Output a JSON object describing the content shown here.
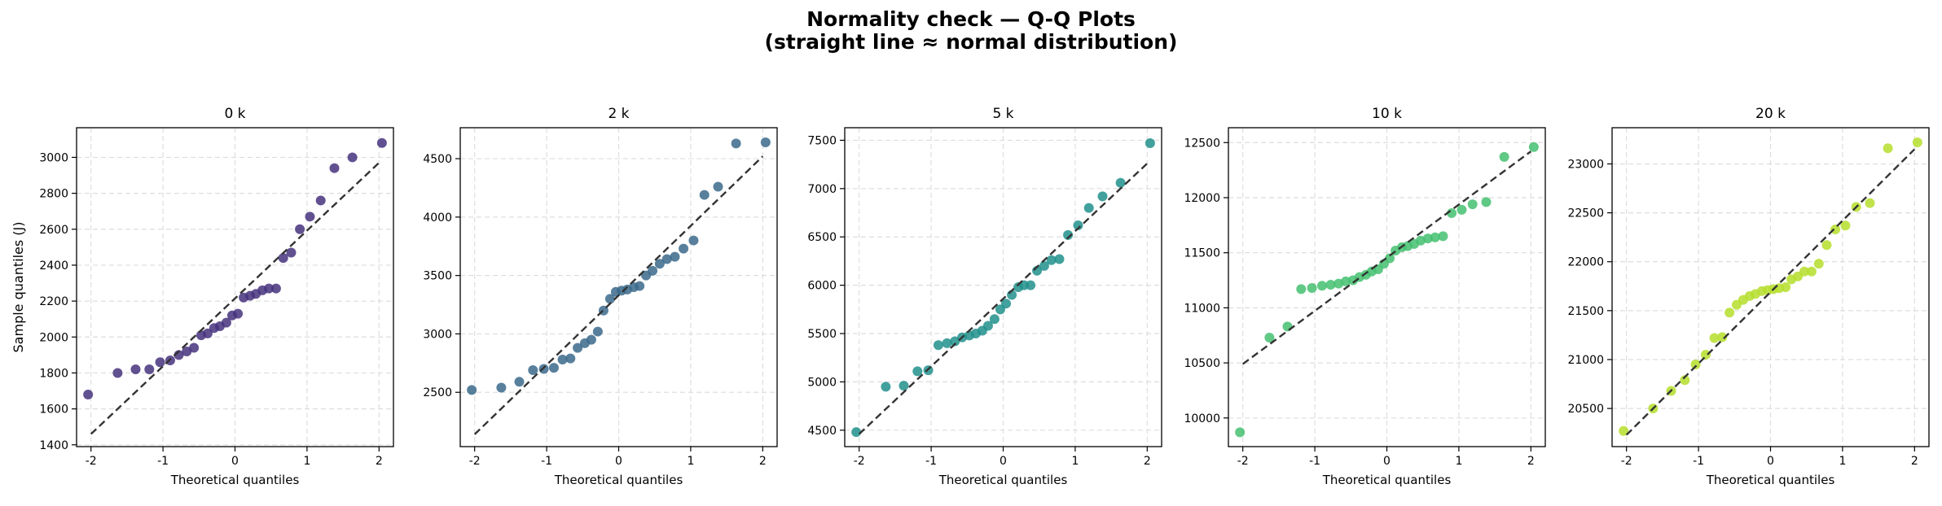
{
  "title": "Normality check — Q-Q Plots\n(straight line ≈ normal distribution)",
  "chart_data": [
    {
      "type": "scatter",
      "title": "0 k",
      "xlabel": "Theoretical quantiles",
      "ylabel": "Sample quantiles (J)",
      "color": "#46327e",
      "x": [
        -2.04,
        -1.63,
        -1.38,
        -1.19,
        -1.04,
        -0.9,
        -0.78,
        -0.67,
        -0.57,
        -0.47,
        -0.38,
        -0.29,
        -0.21,
        -0.12,
        -0.04,
        0.04,
        0.12,
        0.21,
        0.29,
        0.38,
        0.47,
        0.57,
        0.67,
        0.78,
        0.9,
        1.04,
        1.19,
        1.38,
        1.63,
        2.04
      ],
      "values": [
        1680,
        1800,
        1820,
        1820,
        1860,
        1870,
        1900,
        1920,
        1940,
        2010,
        2020,
        2050,
        2060,
        2080,
        2120,
        2130,
        2220,
        2230,
        2240,
        2260,
        2270,
        2270,
        2440,
        2470,
        2600,
        2670,
        2760,
        2940,
        3000,
        3080
      ],
      "fit_line": {
        "x": [
          -2,
          2
        ],
        "y": [
          1460,
          2970
        ]
      },
      "xlim": [
        -2.2,
        2.2
      ],
      "ylim": [
        1390,
        3165
      ],
      "xticks": [
        -2,
        -1,
        0,
        1,
        2
      ],
      "yticks": [
        1400,
        1600,
        1800,
        2000,
        2200,
        2400,
        2600,
        2800,
        3000
      ],
      "grid": true
    },
    {
      "type": "scatter",
      "title": "2 k",
      "xlabel": "Theoretical quantiles",
      "color": "#3b6a8c",
      "x": [
        -2.04,
        -1.63,
        -1.38,
        -1.19,
        -1.04,
        -0.9,
        -0.78,
        -0.67,
        -0.57,
        -0.47,
        -0.38,
        -0.29,
        -0.21,
        -0.12,
        -0.04,
        0.04,
        0.12,
        0.21,
        0.29,
        0.38,
        0.47,
        0.57,
        0.67,
        0.78,
        0.9,
        1.04,
        1.19,
        1.38,
        1.63,
        2.04
      ],
      "values": [
        2520,
        2540,
        2590,
        2690,
        2700,
        2710,
        2780,
        2790,
        2880,
        2920,
        2950,
        3020,
        3200,
        3300,
        3360,
        3370,
        3380,
        3400,
        3410,
        3500,
        3540,
        3600,
        3640,
        3660,
        3730,
        3800,
        4190,
        4260,
        4630,
        4640
      ],
      "fit_line": {
        "x": [
          -2,
          2
        ],
        "y": [
          2140,
          4520
        ]
      },
      "xlim": [
        -2.2,
        2.2
      ],
      "ylim": [
        2035,
        4765
      ],
      "xticks": [
        -2,
        -1,
        0,
        1,
        2
      ],
      "yticks": [
        2500,
        3000,
        3500,
        4000,
        4500
      ],
      "grid": true
    },
    {
      "type": "scatter",
      "title": "5 k",
      "xlabel": "Theoretical quantiles",
      "color": "#21918c",
      "x": [
        -2.04,
        -1.63,
        -1.38,
        -1.19,
        -1.04,
        -0.9,
        -0.78,
        -0.67,
        -0.57,
        -0.47,
        -0.38,
        -0.29,
        -0.21,
        -0.12,
        -0.04,
        0.04,
        0.12,
        0.21,
        0.29,
        0.38,
        0.47,
        0.57,
        0.67,
        0.78,
        0.9,
        1.04,
        1.19,
        1.38,
        1.63,
        2.04
      ],
      "values": [
        4480,
        4950,
        4960,
        5110,
        5120,
        5380,
        5400,
        5420,
        5460,
        5480,
        5500,
        5530,
        5580,
        5650,
        5750,
        5810,
        5900,
        5980,
        6000,
        6000,
        6150,
        6200,
        6260,
        6270,
        6520,
        6620,
        6800,
        6920,
        7060,
        7470
      ],
      "fit_line": {
        "x": [
          -2,
          2
        ],
        "y": [
          4460,
          7260
        ]
      },
      "xlim": [
        -2.2,
        2.2
      ],
      "ylim": [
        4330,
        7630
      ],
      "xticks": [
        -2,
        -1,
        0,
        1,
        2
      ],
      "yticks": [
        4500,
        5000,
        5500,
        6000,
        6500,
        7000,
        7500
      ],
      "grid": true
    },
    {
      "type": "scatter",
      "title": "10 k",
      "xlabel": "Theoretical quantiles",
      "color": "#44bf70",
      "x": [
        -2.04,
        -1.63,
        -1.38,
        -1.19,
        -1.04,
        -0.9,
        -0.78,
        -0.67,
        -0.57,
        -0.47,
        -0.38,
        -0.29,
        -0.21,
        -0.12,
        -0.04,
        0.04,
        0.12,
        0.21,
        0.29,
        0.38,
        0.47,
        0.57,
        0.67,
        0.78,
        0.9,
        1.04,
        1.19,
        1.38,
        1.63,
        2.04
      ],
      "values": [
        9870,
        10730,
        10830,
        11170,
        11180,
        11200,
        11210,
        11220,
        11240,
        11250,
        11280,
        11300,
        11330,
        11350,
        11400,
        11450,
        11520,
        11550,
        11560,
        11580,
        11610,
        11630,
        11640,
        11650,
        11860,
        11890,
        11940,
        11960,
        12370,
        12460
      ],
      "fit_line": {
        "x": [
          -2,
          2
        ],
        "y": [
          10490,
          12420
        ]
      },
      "xlim": [
        -2.2,
        2.2
      ],
      "ylim": [
        9740,
        12635
      ],
      "xticks": [
        -2,
        -1,
        0,
        1,
        2
      ],
      "yticks": [
        10000,
        10500,
        11000,
        11500,
        12000,
        12500
      ],
      "grid": true
    },
    {
      "type": "scatter",
      "title": "20 k",
      "xlabel": "Theoretical quantiles",
      "color": "#b5de2b",
      "x": [
        -2.04,
        -1.63,
        -1.38,
        -1.19,
        -1.04,
        -0.9,
        -0.78,
        -0.67,
        -0.57,
        -0.47,
        -0.38,
        -0.29,
        -0.21,
        -0.12,
        -0.04,
        0.04,
        0.12,
        0.21,
        0.29,
        0.38,
        0.47,
        0.57,
        0.67,
        0.78,
        0.9,
        1.04,
        1.19,
        1.38,
        1.63,
        2.04
      ],
      "values": [
        20270,
        20500,
        20680,
        20790,
        20950,
        21050,
        21220,
        21230,
        21480,
        21560,
        21610,
        21650,
        21670,
        21700,
        21710,
        21720,
        21730,
        21740,
        21820,
        21850,
        21900,
        21900,
        21980,
        22170,
        22330,
        22370,
        22560,
        22600,
        23160,
        23220
      ],
      "fit_line": {
        "x": [
          -2,
          2
        ],
        "y": [
          20230,
          23150
        ]
      },
      "xlim": [
        -2.2,
        2.2
      ],
      "ylim": [
        20110,
        23370
      ],
      "xticks": [
        -2,
        -1,
        0,
        1,
        2
      ],
      "yticks": [
        20500,
        21000,
        21500,
        22000,
        22500,
        23000
      ],
      "grid": true
    }
  ]
}
